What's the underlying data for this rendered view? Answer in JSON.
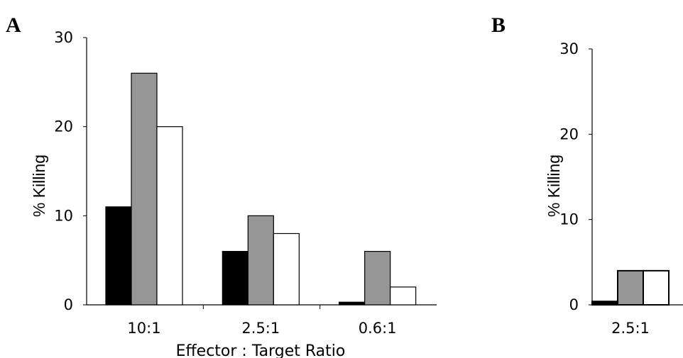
{
  "chart_data": [
    {
      "panel": "A",
      "type": "bar",
      "categories": [
        "10:1",
        "2.5:1",
        "0.6:1"
      ],
      "series": [
        {
          "values": [
            11,
            6,
            0.3
          ],
          "color": "#000000"
        },
        {
          "values": [
            26,
            10,
            6
          ],
          "color": "#969696"
        },
        {
          "values": [
            20,
            8,
            2
          ],
          "color": "#ffffff"
        }
      ],
      "ylabel": "% Killing",
      "xlabel": "Effector : Target Ratio",
      "ylim": [
        0,
        30
      ],
      "yticks": [
        "0",
        "10",
        "20",
        "30"
      ],
      "grid": false
    },
    {
      "panel": "B",
      "type": "bar",
      "categories": [
        "2.5:1"
      ],
      "series": [
        {
          "values": [
            0.4
          ],
          "color": "#000000"
        },
        {
          "values": [
            4
          ],
          "color": "#969696"
        },
        {
          "values": [
            4
          ],
          "color": "#ffffff"
        }
      ],
      "ylabel": "% Killing",
      "xlabel": "",
      "ylim": [
        0,
        30
      ],
      "yticks": [
        "0",
        "10",
        "20",
        "30"
      ],
      "grid": false
    }
  ]
}
